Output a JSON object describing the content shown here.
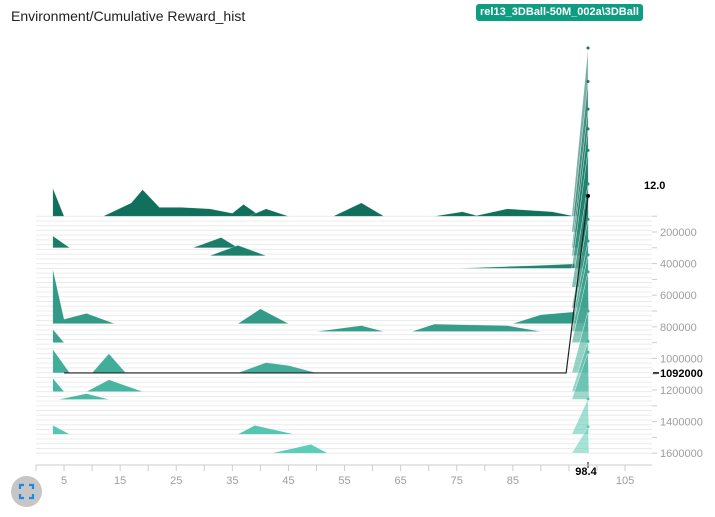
{
  "header": {
    "title": "Environment/Cumulative Reward_hist",
    "run": "rel13_3DBall-50M_002a\\3DBall"
  },
  "chart_data": {
    "type": "histogram-offset",
    "title": "Environment/Cumulative Reward_hist",
    "x_ticks": [
      5,
      15,
      25,
      35,
      45,
      55,
      65,
      75,
      85,
      95,
      105
    ],
    "y_ticks": [
      200000,
      400000,
      600000,
      800000,
      1000000,
      1200000,
      1400000,
      1600000
    ],
    "xlim": [
      0,
      110
    ],
    "ylim": [
      0,
      1600000
    ],
    "colors": {
      "first": "#0b6a56",
      "last": "#5ccdb8"
    },
    "hover": {
      "step": 1092000,
      "step_label": "1092000",
      "x": 98.4,
      "x_label": "98.4",
      "count": 12.0,
      "count_label": "12.0"
    },
    "histograms": [
      {
        "step": 100000,
        "spike": 11.4,
        "shapes": [
          [
            [
              3,
              1.9
            ],
            [
              5,
              0
            ]
          ],
          [
            [
              12,
              0
            ],
            [
              17,
              0.9
            ],
            [
              19,
              1.8
            ],
            [
              22,
              0.6
            ],
            [
              26,
              0.6
            ],
            [
              31,
              0.5
            ],
            [
              35,
              0.2
            ],
            [
              37,
              0.8
            ],
            [
              40,
              0
            ]
          ],
          [
            [
              38,
              0
            ],
            [
              41,
              0.5
            ],
            [
              45,
              0
            ]
          ],
          [
            [
              53,
              0
            ],
            [
              58,
              0.9
            ],
            [
              62,
              0
            ]
          ],
          [
            [
              71,
              0
            ],
            [
              76,
              0.3
            ],
            [
              79,
              0
            ]
          ],
          [
            [
              78,
              0
            ],
            [
              84,
              0.5
            ],
            [
              92,
              0.3
            ],
            [
              96,
              0
            ]
          ]
        ]
      },
      {
        "step": 200000,
        "spike": 10.2,
        "shapes": []
      },
      {
        "step": 300000,
        "spike": 9.4,
        "shapes": [
          [
            [
              3,
              0.8
            ],
            [
              6,
              0
            ]
          ],
          [
            [
              28,
              0
            ],
            [
              33,
              0.7
            ],
            [
              36,
              0
            ]
          ]
        ]
      },
      {
        "step": 350000,
        "spike": 8.6,
        "shapes": [
          [
            [
              31,
              0
            ],
            [
              36,
              0.7
            ],
            [
              41,
              0
            ]
          ]
        ]
      },
      {
        "step": 430000,
        "spike": 8.0,
        "shapes": [
          [
            [
              75,
              0
            ],
            [
              90,
              0.2
            ],
            [
              96,
              0.3
            ]
          ]
        ]
      },
      {
        "step": 550000,
        "spike": 7.0,
        "shapes": []
      },
      {
        "step": 680000,
        "spike": 6.0,
        "shapes": []
      },
      {
        "step": 780000,
        "spike": 5.6,
        "shapes": [
          [
            [
              3,
              3.7
            ],
            [
              5,
              0.3
            ],
            [
              9,
              0.7
            ],
            [
              14,
              0
            ]
          ],
          [
            [
              36,
              0
            ],
            [
              40,
              1.0
            ],
            [
              45,
              0
            ]
          ],
          [
            [
              85,
              0
            ],
            [
              90,
              0.6
            ],
            [
              96,
              0.8
            ]
          ]
        ]
      },
      {
        "step": 830000,
        "spike": 5.2,
        "shapes": [
          [
            [
              50,
              0
            ],
            [
              58,
              0.4
            ],
            [
              62,
              0
            ]
          ],
          [
            [
              67,
              0
            ],
            [
              71,
              0.5
            ],
            [
              84,
              0.4
            ],
            [
              90,
              0
            ]
          ]
        ]
      },
      {
        "step": 900000,
        "spike": 4.8,
        "shapes": [
          [
            [
              3,
              0.9
            ],
            [
              5,
              0
            ]
          ]
        ]
      },
      {
        "step": 1092000,
        "spike": 4.2,
        "shapes": [
          [
            [
              3,
              1.6
            ],
            [
              6,
              0
            ]
          ],
          [
            [
              10,
              0
            ],
            [
              13,
              1.3
            ],
            [
              16,
              0
            ]
          ],
          [
            [
              36,
              0
            ],
            [
              41,
              0.7
            ],
            [
              45,
              0.5
            ],
            [
              50,
              0
            ]
          ]
        ]
      },
      {
        "step": 1210000,
        "spike": 3.4,
        "shapes": [
          [
            [
              3,
              0.9
            ],
            [
              5,
              0
            ]
          ],
          [
            [
              9,
              0
            ],
            [
              13,
              0.8
            ],
            [
              19,
              0
            ]
          ]
        ]
      },
      {
        "step": 1260000,
        "spike": 3.2,
        "shapes": [
          [
            [
              4,
              0
            ],
            [
              9,
              0.4
            ],
            [
              13,
              0
            ]
          ]
        ]
      },
      {
        "step": 1480000,
        "spike": 2.4,
        "shapes": [
          [
            [
              3,
              0.6
            ],
            [
              6,
              0
            ]
          ],
          [
            [
              36,
              0
            ],
            [
              39,
              0.6
            ],
            [
              46,
              0
            ]
          ]
        ]
      },
      {
        "step": 1600000,
        "spike": 1.8,
        "shapes": [
          [
            [
              42,
              0
            ],
            [
              49,
              0.6
            ],
            [
              52,
              0
            ]
          ]
        ]
      }
    ]
  }
}
